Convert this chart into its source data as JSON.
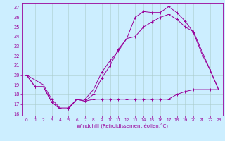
{
  "xlabel": "Windchill (Refroidissement éolien,°C)",
  "xlim": [
    -0.5,
    23.5
  ],
  "ylim": [
    15.8,
    27.5
  ],
  "yticks": [
    16,
    17,
    18,
    19,
    20,
    21,
    22,
    23,
    24,
    25,
    26,
    27
  ],
  "xticks": [
    0,
    1,
    2,
    3,
    4,
    5,
    6,
    7,
    8,
    9,
    10,
    11,
    12,
    13,
    14,
    15,
    16,
    17,
    18,
    19,
    20,
    21,
    22,
    23
  ],
  "background_color": "#cceeff",
  "grid_color": "#aacccc",
  "line_color": "#990099",
  "line1_x": [
    0,
    1,
    2,
    3,
    4,
    5,
    6,
    7,
    8,
    9,
    10,
    11,
    12,
    13,
    14,
    15,
    16,
    17,
    18,
    19,
    20,
    21,
    22,
    23
  ],
  "line1_y": [
    20.0,
    18.8,
    18.8,
    17.2,
    16.5,
    16.5,
    17.5,
    17.3,
    17.5,
    17.5,
    17.5,
    17.5,
    17.5,
    17.5,
    17.5,
    17.5,
    17.5,
    17.5,
    18.0,
    18.3,
    18.5,
    18.5,
    18.5,
    18.5
  ],
  "line2_x": [
    0,
    1,
    2,
    3,
    4,
    5,
    6,
    7,
    8,
    9,
    10,
    11,
    12,
    13,
    14,
    15,
    16,
    17,
    18,
    19,
    20,
    21,
    22,
    23
  ],
  "line2_y": [
    20.0,
    18.8,
    18.8,
    17.2,
    16.5,
    16.5,
    17.5,
    17.3,
    18.0,
    19.7,
    21.0,
    22.7,
    23.8,
    26.0,
    26.6,
    26.5,
    26.5,
    27.1,
    26.5,
    25.6,
    24.4,
    22.2,
    20.5,
    18.5
  ],
  "line3_x": [
    0,
    2,
    3,
    4,
    5,
    6,
    7,
    8,
    9,
    10,
    11,
    12,
    13,
    14,
    15,
    16,
    17,
    18,
    19,
    20,
    21,
    22,
    23
  ],
  "line3_y": [
    20.0,
    19.0,
    17.5,
    16.6,
    16.6,
    17.5,
    17.5,
    18.5,
    20.3,
    21.5,
    22.5,
    23.8,
    24.0,
    25.0,
    25.5,
    26.0,
    26.3,
    25.8,
    25.0,
    24.5,
    22.5,
    20.5,
    18.5
  ]
}
